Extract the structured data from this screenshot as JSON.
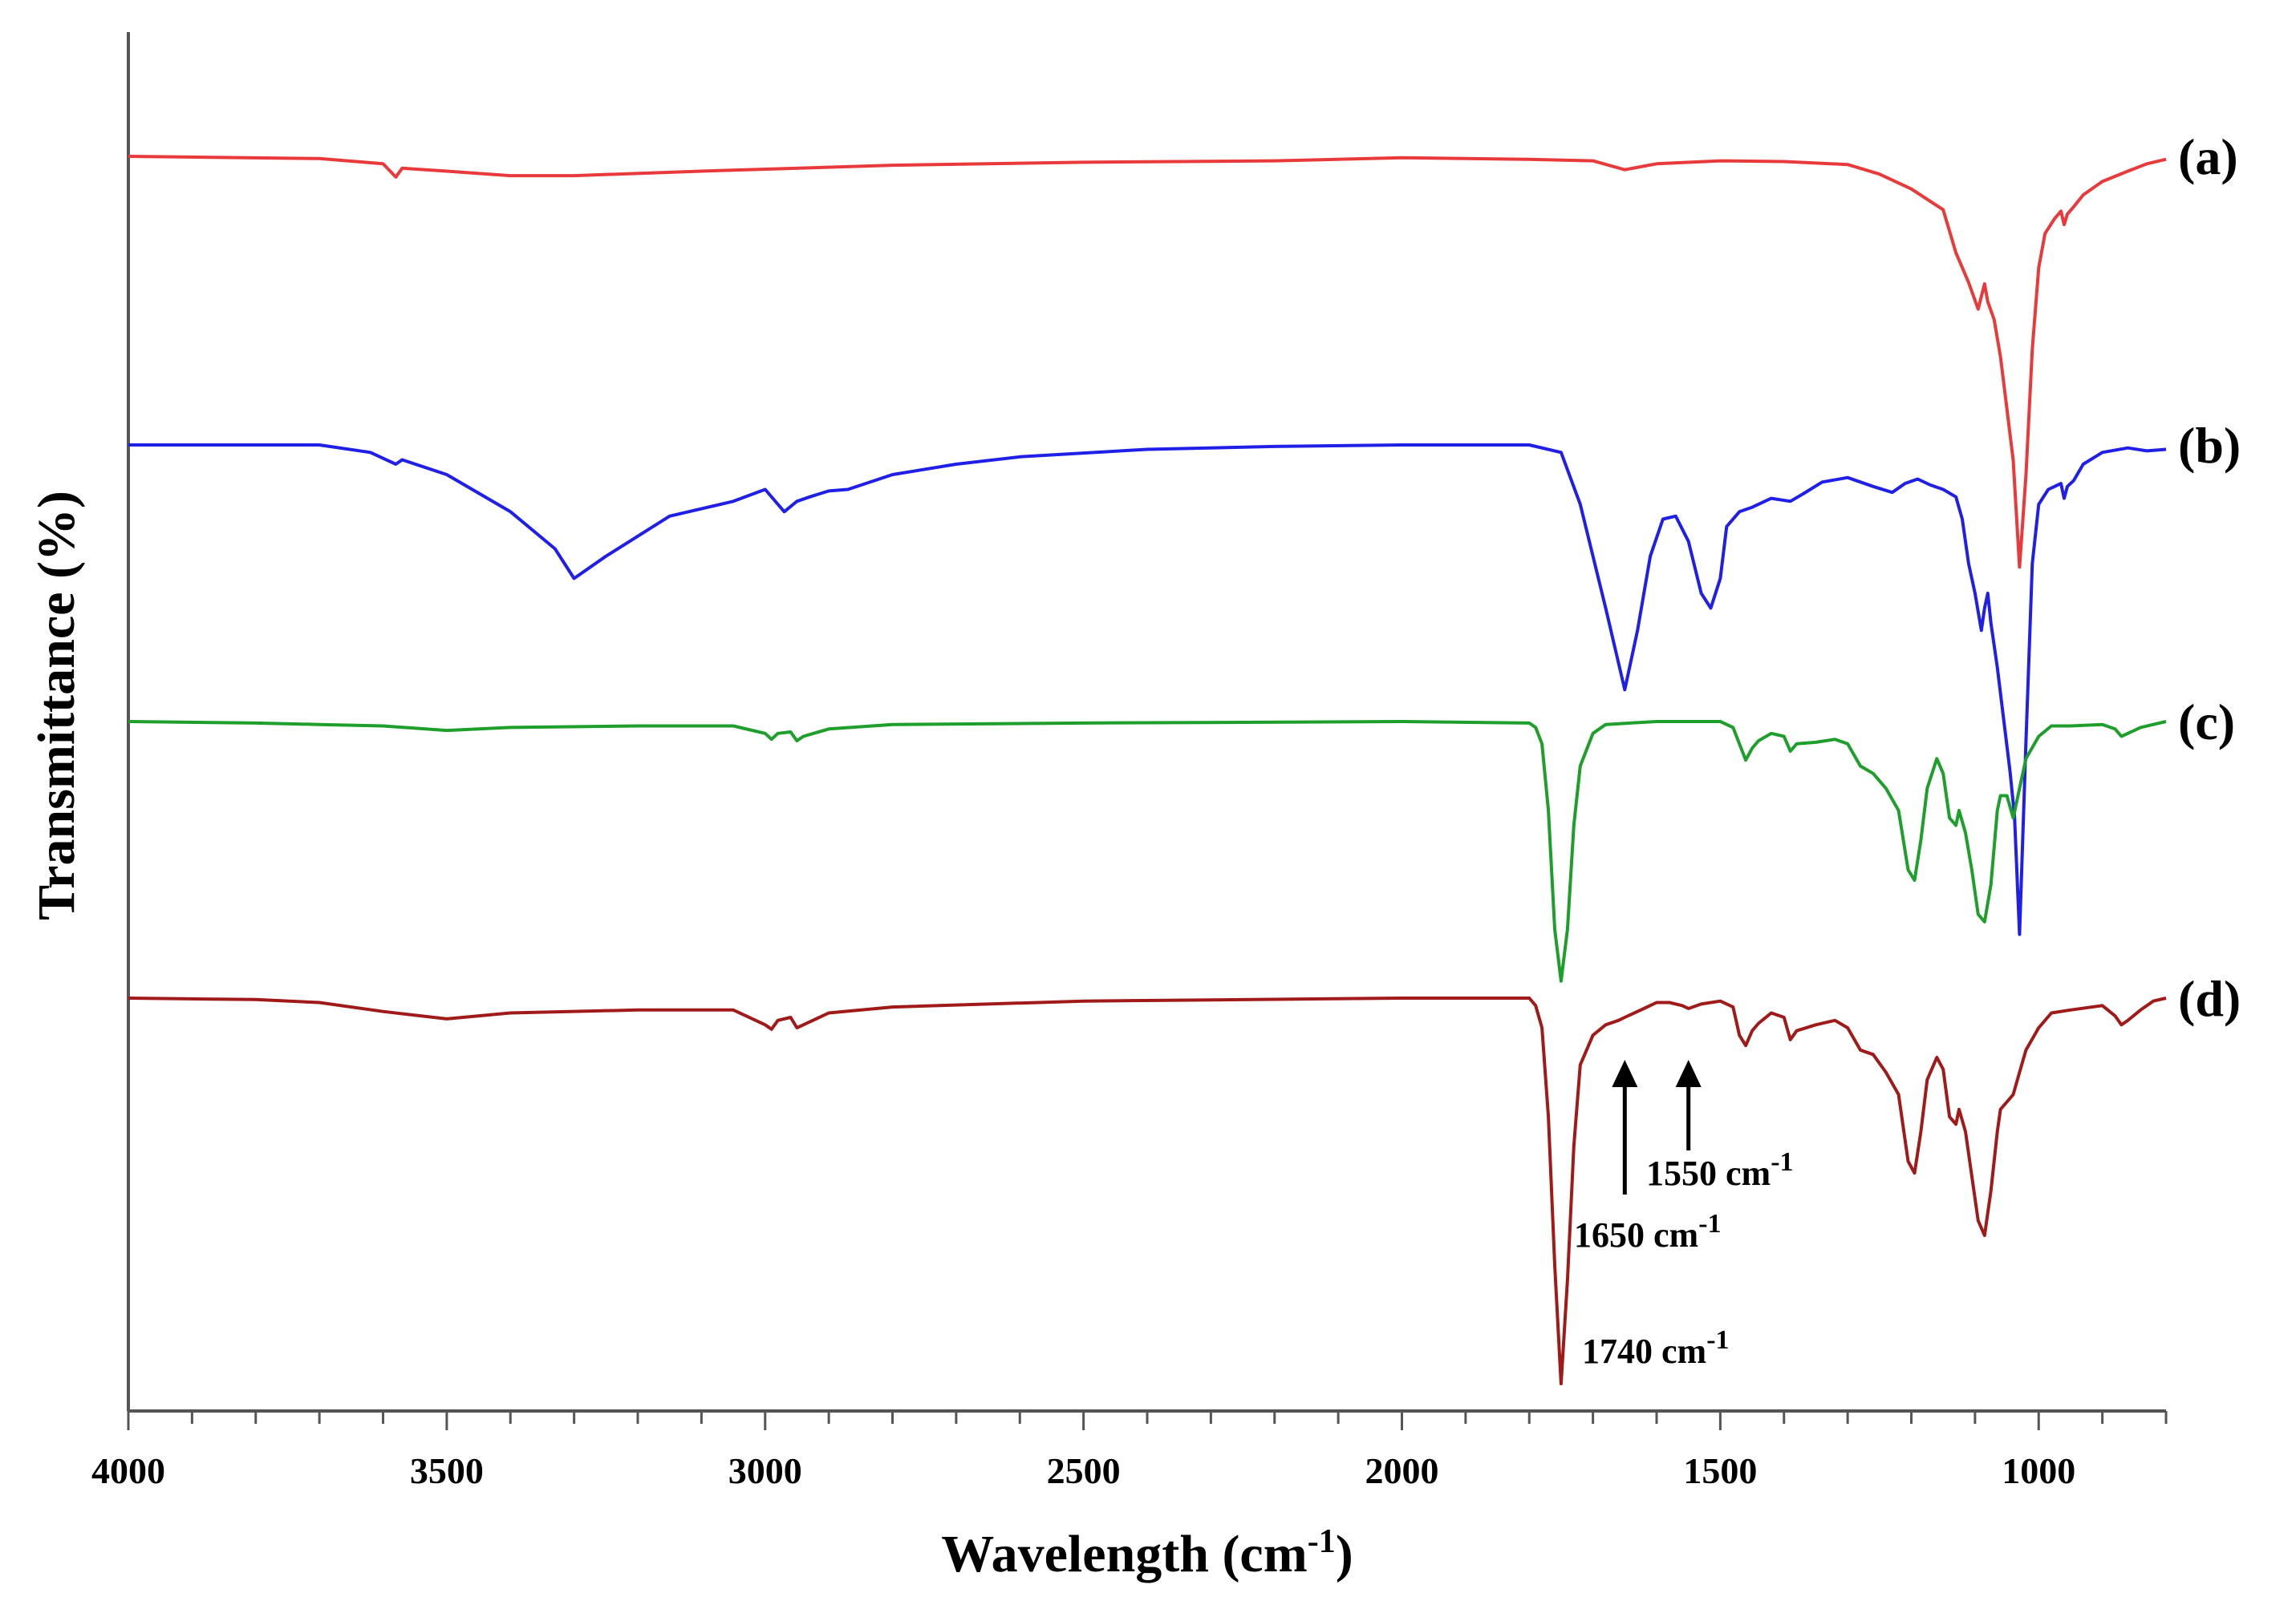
{
  "chart_data": {
    "type": "line",
    "title": "",
    "xlabel_main": "Wavelength (cm",
    "xlabel_sup": "-1",
    "xlabel_close": ")",
    "ylabel": "Transmittance (%)",
    "xlim": [
      4000,
      800
    ],
    "x_reversed": true,
    "yticks_shown": false,
    "xticks": [
      4000,
      3500,
      3000,
      2500,
      2000,
      1500,
      1000
    ],
    "xtick_labels": [
      "4000",
      "3500",
      "3000",
      "2500",
      "2000",
      "1500",
      "1000"
    ],
    "minor_tick_step": 100,
    "series": [
      {
        "name": "(a)",
        "color": "#e83a3a",
        "offset": 10.0,
        "points": [
          [
            4000,
            0
          ],
          [
            3700,
            -0.15
          ],
          [
            3600,
            -0.5
          ],
          [
            3580,
            -1.4
          ],
          [
            3570,
            -0.8
          ],
          [
            3500,
            -1.0
          ],
          [
            3400,
            -1.3
          ],
          [
            3300,
            -1.3
          ],
          [
            3100,
            -1.0
          ],
          [
            2800,
            -0.6
          ],
          [
            2500,
            -0.4
          ],
          [
            2200,
            -0.3
          ],
          [
            2000,
            -0.1
          ],
          [
            1800,
            -0.2
          ],
          [
            1700,
            -0.3
          ],
          [
            1650,
            -0.9
          ],
          [
            1600,
            -0.5
          ],
          [
            1500,
            -0.3
          ],
          [
            1400,
            -0.35
          ],
          [
            1300,
            -0.55
          ],
          [
            1250,
            -1.2
          ],
          [
            1200,
            -2.2
          ],
          [
            1150,
            -3.6
          ],
          [
            1130,
            -6.5
          ],
          [
            1110,
            -8.5
          ],
          [
            1095,
            -10.3
          ],
          [
            1085,
            -8.6
          ],
          [
            1080,
            -9.8
          ],
          [
            1070,
            -11.0
          ],
          [
            1060,
            -13.5
          ],
          [
            1050,
            -17.0
          ],
          [
            1040,
            -20.5
          ],
          [
            1030,
            -27.7
          ],
          [
            1020,
            -21.5
          ],
          [
            1010,
            -13.0
          ],
          [
            1000,
            -7.5
          ],
          [
            990,
            -5.2
          ],
          [
            975,
            -4.2
          ],
          [
            965,
            -3.7
          ],
          [
            960,
            -4.6
          ],
          [
            955,
            -3.9
          ],
          [
            945,
            -3.4
          ],
          [
            930,
            -2.6
          ],
          [
            900,
            -1.7
          ],
          [
            860,
            -1.0
          ],
          [
            830,
            -0.5
          ],
          [
            800,
            -0.2
          ]
        ]
      },
      {
        "name": "(b)",
        "color": "#1f1fe8",
        "offset": 0.0,
        "points": [
          [
            4000,
            0
          ],
          [
            3700,
            0
          ],
          [
            3620,
            -0.5
          ],
          [
            3580,
            -1.3
          ],
          [
            3570,
            -1.0
          ],
          [
            3500,
            -2.0
          ],
          [
            3400,
            -4.5
          ],
          [
            3330,
            -7.0
          ],
          [
            3300,
            -9.0
          ],
          [
            3250,
            -7.5
          ],
          [
            3150,
            -4.8
          ],
          [
            3050,
            -3.8
          ],
          [
            3000,
            -3.0
          ],
          [
            2970,
            -4.5
          ],
          [
            2950,
            -3.8
          ],
          [
            2930,
            -3.5
          ],
          [
            2900,
            -3.1
          ],
          [
            2870,
            -3.0
          ],
          [
            2800,
            -2.0
          ],
          [
            2700,
            -1.3
          ],
          [
            2600,
            -0.8
          ],
          [
            2400,
            -0.3
          ],
          [
            2200,
            -0.1
          ],
          [
            2000,
            0
          ],
          [
            1800,
            0
          ],
          [
            1750,
            -0.5
          ],
          [
            1720,
            -4.0
          ],
          [
            1680,
            -11.0
          ],
          [
            1650,
            -16.5
          ],
          [
            1630,
            -12.5
          ],
          [
            1610,
            -7.5
          ],
          [
            1590,
            -5.0
          ],
          [
            1570,
            -4.8
          ],
          [
            1550,
            -6.5
          ],
          [
            1530,
            -10.0
          ],
          [
            1515,
            -11.0
          ],
          [
            1500,
            -9.0
          ],
          [
            1490,
            -5.5
          ],
          [
            1470,
            -4.5
          ],
          [
            1450,
            -4.2
          ],
          [
            1420,
            -3.6
          ],
          [
            1390,
            -3.8
          ],
          [
            1370,
            -3.3
          ],
          [
            1340,
            -2.5
          ],
          [
            1300,
            -2.2
          ],
          [
            1260,
            -2.8
          ],
          [
            1230,
            -3.2
          ],
          [
            1210,
            -2.6
          ],
          [
            1190,
            -2.3
          ],
          [
            1170,
            -2.7
          ],
          [
            1150,
            -3.0
          ],
          [
            1130,
            -3.5
          ],
          [
            1120,
            -5.0
          ],
          [
            1110,
            -8.0
          ],
          [
            1100,
            -10.0
          ],
          [
            1090,
            -12.5
          ],
          [
            1085,
            -11.0
          ],
          [
            1080,
            -10.0
          ],
          [
            1075,
            -12.0
          ],
          [
            1065,
            -15.0
          ],
          [
            1055,
            -18.5
          ],
          [
            1045,
            -22.0
          ],
          [
            1038,
            -25.0
          ],
          [
            1030,
            -33.0
          ],
          [
            1020,
            -20.0
          ],
          [
            1010,
            -8.0
          ],
          [
            1000,
            -4.0
          ],
          [
            985,
            -3.0
          ],
          [
            975,
            -2.8
          ],
          [
            965,
            -2.6
          ],
          [
            960,
            -3.6
          ],
          [
            955,
            -2.8
          ],
          [
            945,
            -2.4
          ],
          [
            930,
            -1.3
          ],
          [
            900,
            -0.5
          ],
          [
            860,
            -0.2
          ],
          [
            830,
            -0.4
          ],
          [
            800,
            -0.3
          ]
        ]
      },
      {
        "name": "(c)",
        "color": "#1e9e2a",
        "offset": -10.0,
        "points": [
          [
            4000,
            0
          ],
          [
            3800,
            -0.1
          ],
          [
            3700,
            -0.2
          ],
          [
            3600,
            -0.3
          ],
          [
            3500,
            -0.6
          ],
          [
            3400,
            -0.4
          ],
          [
            3200,
            -0.3
          ],
          [
            3050,
            -0.3
          ],
          [
            3000,
            -0.8
          ],
          [
            2990,
            -1.2
          ],
          [
            2980,
            -0.8
          ],
          [
            2960,
            -0.7
          ],
          [
            2950,
            -1.3
          ],
          [
            2940,
            -1.0
          ],
          [
            2900,
            -0.5
          ],
          [
            2800,
            -0.2
          ],
          [
            2500,
            -0.1
          ],
          [
            2000,
            0
          ],
          [
            1800,
            -0.1
          ],
          [
            1790,
            -0.4
          ],
          [
            1780,
            -1.5
          ],
          [
            1770,
            -6.0
          ],
          [
            1760,
            -14.0
          ],
          [
            1750,
            -17.5
          ],
          [
            1740,
            -14.0
          ],
          [
            1730,
            -7.0
          ],
          [
            1720,
            -3.0
          ],
          [
            1700,
            -0.8
          ],
          [
            1680,
            -0.2
          ],
          [
            1600,
            0
          ],
          [
            1500,
            0
          ],
          [
            1480,
            -0.4
          ],
          [
            1470,
            -1.5
          ],
          [
            1460,
            -2.6
          ],
          [
            1450,
            -1.8
          ],
          [
            1440,
            -1.3
          ],
          [
            1420,
            -0.8
          ],
          [
            1400,
            -1.0
          ],
          [
            1390,
            -2.0
          ],
          [
            1380,
            -1.5
          ],
          [
            1350,
            -1.4
          ],
          [
            1320,
            -1.2
          ],
          [
            1300,
            -1.5
          ],
          [
            1280,
            -3.0
          ],
          [
            1260,
            -3.5
          ],
          [
            1240,
            -4.5
          ],
          [
            1220,
            -6.0
          ],
          [
            1205,
            -10.0
          ],
          [
            1195,
            -10.7
          ],
          [
            1185,
            -8.0
          ],
          [
            1175,
            -4.5
          ],
          [
            1160,
            -2.5
          ],
          [
            1150,
            -3.5
          ],
          [
            1140,
            -6.5
          ],
          [
            1130,
            -7.0
          ],
          [
            1125,
            -6.0
          ],
          [
            1115,
            -7.5
          ],
          [
            1105,
            -10.0
          ],
          [
            1095,
            -13.0
          ],
          [
            1085,
            -13.5
          ],
          [
            1075,
            -11.0
          ],
          [
            1065,
            -6.0
          ],
          [
            1060,
            -5.0
          ],
          [
            1050,
            -5.0
          ],
          [
            1040,
            -6.5
          ],
          [
            1030,
            -4.5
          ],
          [
            1020,
            -2.5
          ],
          [
            1000,
            -1.0
          ],
          [
            980,
            -0.3
          ],
          [
            950,
            -0.3
          ],
          [
            900,
            -0.2
          ],
          [
            880,
            -0.5
          ],
          [
            870,
            -1.0
          ],
          [
            860,
            -0.8
          ],
          [
            840,
            -0.4
          ],
          [
            820,
            -0.2
          ],
          [
            800,
            0
          ]
        ]
      },
      {
        "name": "(d)",
        "color": "#a11a1a",
        "offset": -20.0,
        "points": [
          [
            4000,
            0
          ],
          [
            3800,
            -0.1
          ],
          [
            3700,
            -0.3
          ],
          [
            3600,
            -0.9
          ],
          [
            3500,
            -1.4
          ],
          [
            3400,
            -1.0
          ],
          [
            3200,
            -0.8
          ],
          [
            3050,
            -0.8
          ],
          [
            3000,
            -1.8
          ],
          [
            2990,
            -2.1
          ],
          [
            2980,
            -1.5
          ],
          [
            2960,
            -1.3
          ],
          [
            2950,
            -2.0
          ],
          [
            2940,
            -1.8
          ],
          [
            2900,
            -1.0
          ],
          [
            2800,
            -0.6
          ],
          [
            2500,
            -0.2
          ],
          [
            2000,
            0
          ],
          [
            1800,
            0
          ],
          [
            1790,
            -0.5
          ],
          [
            1780,
            -2.0
          ],
          [
            1770,
            -8.0
          ],
          [
            1760,
            -18.0
          ],
          [
            1750,
            -26.0
          ],
          [
            1740,
            -19.0
          ],
          [
            1730,
            -10.0
          ],
          [
            1720,
            -4.5
          ],
          [
            1700,
            -2.5
          ],
          [
            1680,
            -1.8
          ],
          [
            1660,
            -1.5
          ],
          [
            1650,
            -1.3
          ],
          [
            1620,
            -0.7
          ],
          [
            1600,
            -0.3
          ],
          [
            1580,
            -0.3
          ],
          [
            1560,
            -0.5
          ],
          [
            1550,
            -0.7
          ],
          [
            1530,
            -0.4
          ],
          [
            1500,
            -0.2
          ],
          [
            1480,
            -0.6
          ],
          [
            1470,
            -2.5
          ],
          [
            1460,
            -3.2
          ],
          [
            1450,
            -2.2
          ],
          [
            1440,
            -1.7
          ],
          [
            1420,
            -1.0
          ],
          [
            1400,
            -1.3
          ],
          [
            1390,
            -2.8
          ],
          [
            1380,
            -2.2
          ],
          [
            1350,
            -1.8
          ],
          [
            1320,
            -1.5
          ],
          [
            1300,
            -2.0
          ],
          [
            1280,
            -3.5
          ],
          [
            1260,
            -3.8
          ],
          [
            1240,
            -5.0
          ],
          [
            1220,
            -6.5
          ],
          [
            1205,
            -11.0
          ],
          [
            1195,
            -11.8
          ],
          [
            1185,
            -9.0
          ],
          [
            1175,
            -5.5
          ],
          [
            1160,
            -4.0
          ],
          [
            1150,
            -4.8
          ],
          [
            1140,
            -8.0
          ],
          [
            1130,
            -8.5
          ],
          [
            1125,
            -7.5
          ],
          [
            1115,
            -9.0
          ],
          [
            1105,
            -12.0
          ],
          [
            1095,
            -15.0
          ],
          [
            1085,
            -16.0
          ],
          [
            1075,
            -13.0
          ],
          [
            1065,
            -9.0
          ],
          [
            1060,
            -7.5
          ],
          [
            1050,
            -7.0
          ],
          [
            1040,
            -6.5
          ],
          [
            1030,
            -5.0
          ],
          [
            1020,
            -3.5
          ],
          [
            1000,
            -2.0
          ],
          [
            980,
            -1.0
          ],
          [
            950,
            -0.8
          ],
          [
            900,
            -0.5
          ],
          [
            880,
            -1.2
          ],
          [
            870,
            -1.8
          ],
          [
            860,
            -1.5
          ],
          [
            840,
            -0.8
          ],
          [
            820,
            -0.2
          ],
          [
            800,
            0
          ]
        ]
      }
    ],
    "annotations": [
      {
        "text": "1740  cm",
        "sup": "-1",
        "x": 1740
      },
      {
        "text": "1650 cm",
        "sup": "-1",
        "x": 1650
      },
      {
        "text": "1550  cm",
        "sup": "-1",
        "x": 1550
      }
    ],
    "arrows_at": [
      1650,
      1550
    ]
  }
}
